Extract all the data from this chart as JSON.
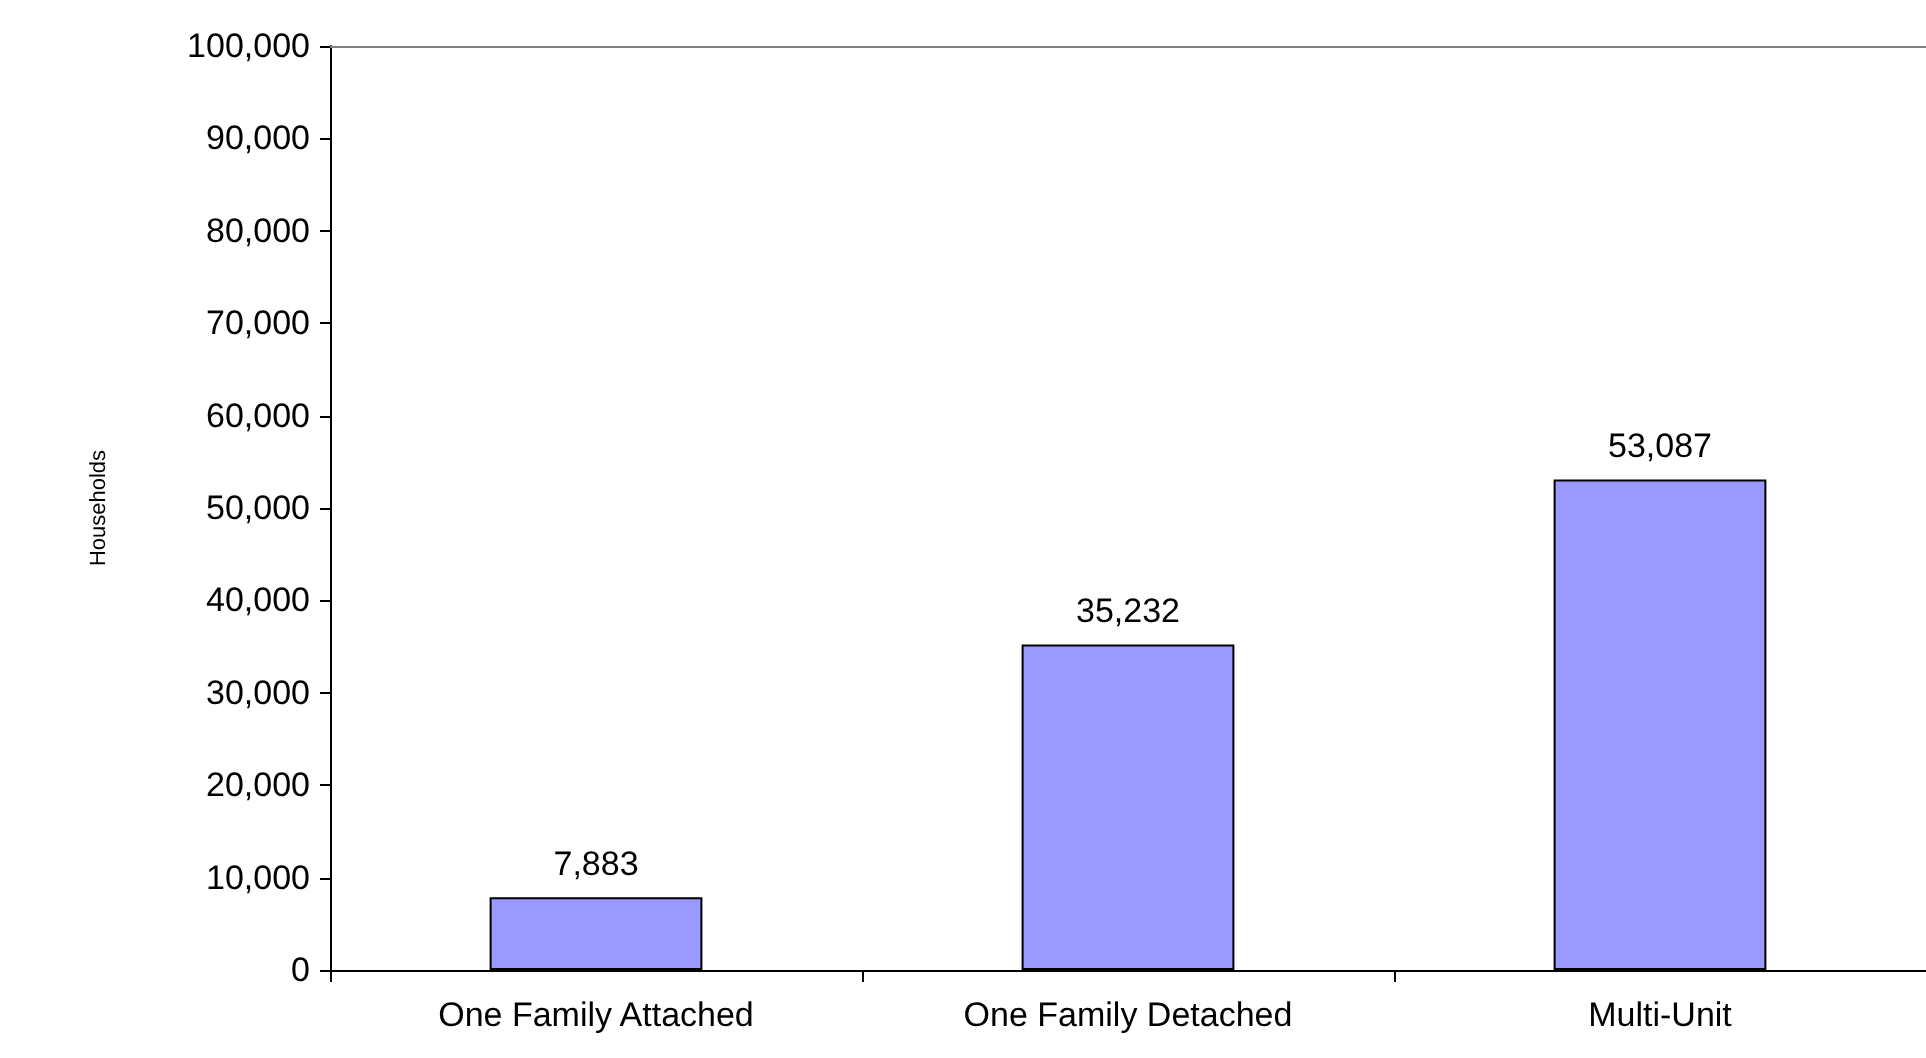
{
  "chart_data": {
    "type": "bar",
    "ylabel": "Households",
    "categories": [
      "One Family Attached",
      "One Family Detached",
      "Multi-Unit"
    ],
    "values": [
      7883,
      35232,
      53087
    ],
    "value_labels": [
      "7,883",
      "35,232",
      "53,087"
    ],
    "color": "#9999ff",
    "ylim": [
      0,
      100000
    ],
    "yticks": [
      0,
      {
        "value": 10000,
        "label": "10,000"
      },
      {
        "value": 20000,
        "label": "20,000"
      },
      {
        "value": 30000,
        "label": "30,000"
      },
      {
        "value": 40000,
        "label": "40,000"
      },
      {
        "value": 50000,
        "label": "50,000"
      },
      {
        "value": 60000,
        "label": "60,000"
      },
      {
        "value": 70000,
        "label": "70,000"
      },
      {
        "value": 80000,
        "label": "80,000"
      },
      {
        "value": 90000,
        "label": "90,000"
      },
      {
        "value": 100000,
        "label": "100,000"
      }
    ]
  }
}
